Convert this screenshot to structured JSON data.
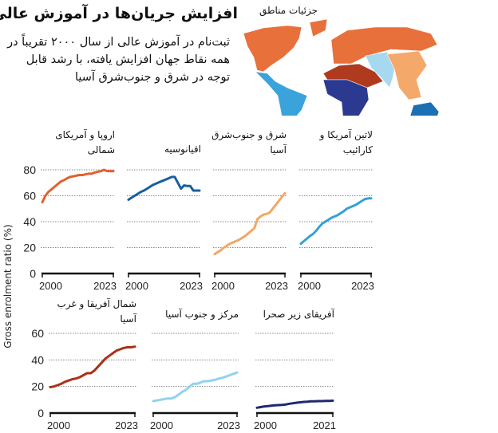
{
  "header": {
    "title": "افزایش جریان‌ها در آموزش عالی",
    "subtitle": "ثبت‌نام در آموزش عالی از سال ۲۰۰۰ تقریباً در همه نقاط جهان افزایش یافته، با رشد قابل توجه در شرق و جنوب‌شرق آسیا"
  },
  "map": {
    "label": "جزئیات مناطق",
    "colors": {
      "europe_north_america": "#e8703a",
      "oceania": "#1a6fb5",
      "east_asia": "#f4a96a",
      "latin_america": "#3aa3dc",
      "north_africa_west_asia": "#b03a1e",
      "central_south_asia": "#a6d8f0",
      "sub_saharan_africa": "#2b3990"
    }
  },
  "chart_data": {
    "type": "line",
    "ylabel": "Gross enrolment ratio (%)",
    "grid": true,
    "panels": [
      {
        "title": "اروپا و آمریکای شمالی",
        "color": "#e0612f",
        "x_start": 2000,
        "x_end": 2023,
        "yticks": [
          0,
          20,
          40,
          60,
          80
        ],
        "ylim": [
          0,
          80
        ],
        "values": [
          55,
          60,
          63,
          65,
          67,
          69,
          71,
          72,
          73.5,
          74.5,
          75,
          75.5,
          76,
          76,
          76.5,
          77,
          77,
          78,
          78.5,
          79,
          80,
          79,
          79,
          79
        ]
      },
      {
        "title": "اقیانوسیه",
        "color": "#175fa0",
        "x_start": 2000,
        "x_end": 2023,
        "yticks": [
          0,
          20,
          40,
          60,
          80
        ],
        "ylim": [
          0,
          80
        ],
        "values": [
          57,
          58.5,
          60,
          61.5,
          63,
          64,
          65.5,
          67,
          68.5,
          69.5,
          70.5,
          71.5,
          72.5,
          73.5,
          74.5,
          74.5,
          70,
          65.5,
          68,
          67.5,
          67.5,
          64,
          64,
          64
        ]
      },
      {
        "title": "شرق و جنوب‌شرق آسیا",
        "color": "#f2a765",
        "x_start": 2000,
        "x_end": 2023,
        "yticks": [
          0,
          20,
          40,
          60,
          80
        ],
        "ylim": [
          0,
          80
        ],
        "values": [
          15,
          16.5,
          18,
          20,
          21.5,
          23,
          24,
          25,
          26,
          27.5,
          29,
          31,
          33,
          35,
          42,
          44,
          45.5,
          46,
          47,
          50,
          53,
          56,
          59,
          62
        ]
      },
      {
        "title": "لاتین آمریکا و کارائیب",
        "color": "#33a1d6",
        "x_start": 2000,
        "x_end": 2023,
        "yticks": [
          0,
          20,
          40,
          60,
          80
        ],
        "ylim": [
          0,
          80
        ],
        "values": [
          23,
          25,
          27,
          29,
          30.5,
          33,
          36,
          38.5,
          40,
          41.5,
          43,
          44,
          45,
          46.5,
          48,
          50,
          51,
          52,
          53,
          54.5,
          56,
          57.5,
          58,
          58
        ]
      },
      {
        "title": "شمال آفریقا و غرب آسیا",
        "color": "#a8321a",
        "x_start": 2000,
        "x_end": 2023,
        "yticks": [
          0,
          20,
          40,
          60
        ],
        "ylim": [
          0,
          60
        ],
        "values": [
          19.5,
          20,
          21,
          22,
          23.5,
          24.5,
          25.5,
          26,
          27,
          28.5,
          30,
          30,
          32,
          35,
          38,
          41,
          43,
          45,
          47,
          48,
          49,
          49.5,
          49.5,
          50
        ]
      },
      {
        "title": "مرکز و جنوب آسیا",
        "color": "#8fd3ee",
        "x_start": 2000,
        "x_end": 2023,
        "yticks": [
          0,
          20,
          40,
          60
        ],
        "ylim": [
          0,
          60
        ],
        "values": [
          9,
          9.5,
          10,
          10.5,
          11,
          11,
          12,
          14,
          16,
          17.5,
          20,
          22,
          22,
          23,
          24,
          24,
          24.5,
          25,
          26,
          26.5,
          27.5,
          28.5,
          29.5,
          30.5
        ]
      },
      {
        "title": "آفریقای زیر صحرا",
        "color": "#1f2a6e",
        "x_start": 2000,
        "x_end": 2021,
        "yticks": [
          0,
          20,
          40,
          60
        ],
        "ylim": [
          0,
          60
        ],
        "values": [
          4,
          4.5,
          5,
          5.2,
          5.5,
          5.8,
          6,
          6.2,
          6.5,
          7,
          7.4,
          7.8,
          8.1,
          8.4,
          8.6,
          8.8,
          8.9,
          9,
          9,
          9.1,
          9.2,
          9.3
        ]
      }
    ]
  }
}
